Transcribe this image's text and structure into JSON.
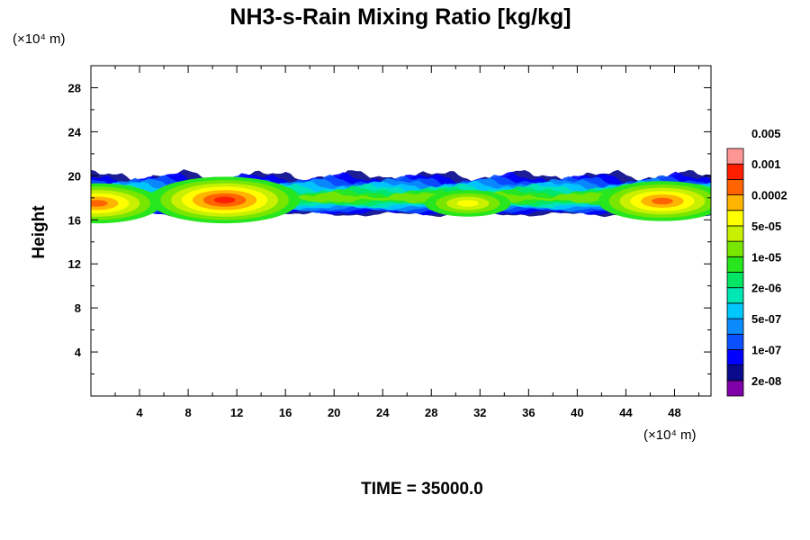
{
  "chart_data": {
    "type": "heatmap",
    "title": "NH3-s-Rain Mixing Ratio [kg/kg]",
    "ylabel": "Height",
    "xlabel": "",
    "x_unit": "(×10⁴ m)",
    "y_unit": "(×10⁴ m)",
    "xlim": [
      0,
      51
    ],
    "ylim": [
      0,
      30
    ],
    "x_ticks": [
      4,
      8,
      12,
      16,
      20,
      24,
      28,
      32,
      36,
      40,
      44,
      48
    ],
    "y_ticks": [
      4,
      8,
      12,
      16,
      20,
      24,
      28
    ],
    "footer": "TIME = 35000.0",
    "colorbar": {
      "colors": [
        "#7f00a8",
        "#0a0a8c",
        "#0000ff",
        "#0a50ff",
        "#0a8cff",
        "#00c8ff",
        "#00e6b4",
        "#00e664",
        "#28e61e",
        "#78e600",
        "#c8f000",
        "#ffff00",
        "#ffb400",
        "#ff6400",
        "#ff1e00",
        "#ff9696"
      ],
      "labels": [
        "2e-08",
        "1e-07",
        "5e-07",
        "2e-06",
        "1e-05",
        "5e-05",
        "0.0002",
        "0.001",
        "0.005"
      ]
    },
    "band": {
      "base_km_x1e4": 16.5,
      "top_km_x1e4": 20,
      "hotspots": [
        {
          "x": 0.5,
          "y": 17.5,
          "level": 13
        },
        {
          "x": 11,
          "y": 17.8,
          "level": 14
        },
        {
          "x": 47,
          "y": 17.7,
          "level": 13
        },
        {
          "x": 31,
          "y": 17.5,
          "level": 11
        }
      ]
    }
  }
}
